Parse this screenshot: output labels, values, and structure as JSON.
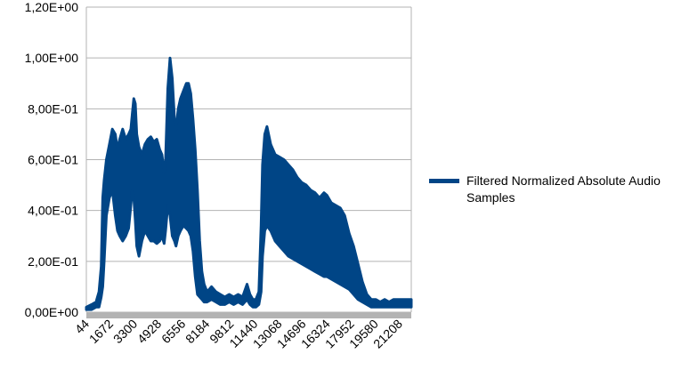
{
  "chart_data": {
    "type": "area",
    "title": "",
    "xlabel": "",
    "ylabel": "",
    "ylim": [
      0,
      1.2
    ],
    "y_ticks": [
      "0,00E+00",
      "2,00E-01",
      "4,00E-01",
      "6,00E-01",
      "8,00E-01",
      "1,00E+00",
      "1,20E+00"
    ],
    "y_tick_values": [
      0,
      0.2,
      0.4,
      0.6,
      0.8,
      1.0,
      1.2
    ],
    "x_range": [
      44,
      22000
    ],
    "x_ticks": [
      "44",
      "1672",
      "3300",
      "4928",
      "6556",
      "8184",
      "9812",
      "11440",
      "13068",
      "14696",
      "16324",
      "17952",
      "19580",
      "21208"
    ],
    "x_tick_values": [
      44,
      1672,
      3300,
      4928,
      6556,
      8184,
      9812,
      11440,
      13068,
      14696,
      16324,
      17952,
      19580,
      21208
    ],
    "grid": true,
    "legend_position": "right",
    "series": [
      {
        "name": "Filtered Normalized Absolute Audio Samples",
        "color": "#004586",
        "upper": [
          [
            44,
            0.02
          ],
          [
            400,
            0.03
          ],
          [
            700,
            0.04
          ],
          [
            900,
            0.08
          ],
          [
            1050,
            0.18
          ],
          [
            1150,
            0.45
          ],
          [
            1250,
            0.52
          ],
          [
            1400,
            0.6
          ],
          [
            1600,
            0.66
          ],
          [
            1800,
            0.72
          ],
          [
            2000,
            0.7
          ],
          [
            2150,
            0.64
          ],
          [
            2300,
            0.68
          ],
          [
            2500,
            0.72
          ],
          [
            2700,
            0.68
          ],
          [
            2900,
            0.7
          ],
          [
            3050,
            0.72
          ],
          [
            3150,
            0.78
          ],
          [
            3250,
            0.84
          ],
          [
            3350,
            0.82
          ],
          [
            3450,
            0.7
          ],
          [
            3600,
            0.65
          ],
          [
            3800,
            0.62
          ],
          [
            4000,
            0.66
          ],
          [
            4200,
            0.68
          ],
          [
            4400,
            0.69
          ],
          [
            4600,
            0.67
          ],
          [
            4800,
            0.68
          ],
          [
            5000,
            0.64
          ],
          [
            5150,
            0.62
          ],
          [
            5300,
            0.55
          ],
          [
            5400,
            0.6
          ],
          [
            5550,
            0.88
          ],
          [
            5700,
            1.0
          ],
          [
            5850,
            0.92
          ],
          [
            6000,
            0.76
          ],
          [
            6100,
            0.72
          ],
          [
            6250,
            0.8
          ],
          [
            6400,
            0.84
          ],
          [
            6600,
            0.87
          ],
          [
            6800,
            0.9
          ],
          [
            6950,
            0.9
          ],
          [
            7100,
            0.86
          ],
          [
            7250,
            0.76
          ],
          [
            7400,
            0.64
          ],
          [
            7550,
            0.48
          ],
          [
            7700,
            0.28
          ],
          [
            7850,
            0.16
          ],
          [
            8000,
            0.11
          ],
          [
            8200,
            0.08
          ],
          [
            8500,
            0.1
          ],
          [
            8800,
            0.08
          ],
          [
            9100,
            0.07
          ],
          [
            9400,
            0.06
          ],
          [
            9700,
            0.07
          ],
          [
            10000,
            0.06
          ],
          [
            10300,
            0.07
          ],
          [
            10600,
            0.06
          ],
          [
            10900,
            0.11
          ],
          [
            11100,
            0.07
          ],
          [
            11300,
            0.05
          ],
          [
            11500,
            0.05
          ],
          [
            11700,
            0.08
          ],
          [
            11850,
            0.34
          ],
          [
            11950,
            0.58
          ],
          [
            12100,
            0.7
          ],
          [
            12250,
            0.73
          ],
          [
            12500,
            0.66
          ],
          [
            12800,
            0.62
          ],
          [
            13100,
            0.61
          ],
          [
            13400,
            0.6
          ],
          [
            13700,
            0.58
          ],
          [
            14000,
            0.56
          ],
          [
            14300,
            0.53
          ],
          [
            14600,
            0.51
          ],
          [
            14900,
            0.5
          ],
          [
            15200,
            0.48
          ],
          [
            15500,
            0.47
          ],
          [
            15800,
            0.45
          ],
          [
            16100,
            0.47
          ],
          [
            16300,
            0.46
          ],
          [
            16600,
            0.43
          ],
          [
            16900,
            0.42
          ],
          [
            17200,
            0.41
          ],
          [
            17500,
            0.38
          ],
          [
            17800,
            0.31
          ],
          [
            18100,
            0.26
          ],
          [
            18400,
            0.19
          ],
          [
            18700,
            0.12
          ],
          [
            19000,
            0.07
          ],
          [
            19300,
            0.05
          ],
          [
            19600,
            0.05
          ],
          [
            19900,
            0.04
          ],
          [
            20200,
            0.05
          ],
          [
            20500,
            0.04
          ],
          [
            20800,
            0.05
          ],
          [
            21100,
            0.05
          ],
          [
            21500,
            0.05
          ],
          [
            22000,
            0.05
          ]
        ],
        "lower": [
          [
            44,
            0.01
          ],
          [
            400,
            0.01
          ],
          [
            700,
            0.02
          ],
          [
            900,
            0.02
          ],
          [
            1050,
            0.06
          ],
          [
            1150,
            0.1
          ],
          [
            1250,
            0.2
          ],
          [
            1400,
            0.38
          ],
          [
            1600,
            0.45
          ],
          [
            1800,
            0.48
          ],
          [
            2000,
            0.38
          ],
          [
            2150,
            0.32
          ],
          [
            2300,
            0.3
          ],
          [
            2500,
            0.28
          ],
          [
            2700,
            0.3
          ],
          [
            2900,
            0.33
          ],
          [
            3050,
            0.42
          ],
          [
            3150,
            0.48
          ],
          [
            3250,
            0.45
          ],
          [
            3350,
            0.36
          ],
          [
            3450,
            0.26
          ],
          [
            3600,
            0.22
          ],
          [
            3800,
            0.28
          ],
          [
            4000,
            0.32
          ],
          [
            4200,
            0.3
          ],
          [
            4400,
            0.28
          ],
          [
            4600,
            0.28
          ],
          [
            4800,
            0.27
          ],
          [
            5000,
            0.28
          ],
          [
            5150,
            0.3
          ],
          [
            5300,
            0.27
          ],
          [
            5400,
            0.32
          ],
          [
            5550,
            0.42
          ],
          [
            5700,
            0.38
          ],
          [
            5850,
            0.3
          ],
          [
            6000,
            0.28
          ],
          [
            6100,
            0.26
          ],
          [
            6250,
            0.3
          ],
          [
            6400,
            0.32
          ],
          [
            6600,
            0.34
          ],
          [
            6800,
            0.33
          ],
          [
            6950,
            0.32
          ],
          [
            7100,
            0.3
          ],
          [
            7250,
            0.24
          ],
          [
            7400,
            0.14
          ],
          [
            7550,
            0.07
          ],
          [
            7700,
            0.06
          ],
          [
            7850,
            0.05
          ],
          [
            8000,
            0.04
          ],
          [
            8200,
            0.04
          ],
          [
            8500,
            0.05
          ],
          [
            8800,
            0.04
          ],
          [
            9100,
            0.03
          ],
          [
            9400,
            0.03
          ],
          [
            9700,
            0.04
          ],
          [
            10000,
            0.03
          ],
          [
            10300,
            0.04
          ],
          [
            10600,
            0.03
          ],
          [
            10900,
            0.05
          ],
          [
            11100,
            0.03
          ],
          [
            11300,
            0.02
          ],
          [
            11500,
            0.02
          ],
          [
            11700,
            0.03
          ],
          [
            11850,
            0.08
          ],
          [
            11950,
            0.22
          ],
          [
            12100,
            0.32
          ],
          [
            12250,
            0.34
          ],
          [
            12500,
            0.32
          ],
          [
            12800,
            0.28
          ],
          [
            13100,
            0.26
          ],
          [
            13400,
            0.24
          ],
          [
            13700,
            0.22
          ],
          [
            14000,
            0.21
          ],
          [
            14300,
            0.2
          ],
          [
            14600,
            0.19
          ],
          [
            14900,
            0.18
          ],
          [
            15200,
            0.17
          ],
          [
            15500,
            0.16
          ],
          [
            15800,
            0.15
          ],
          [
            16100,
            0.14
          ],
          [
            16300,
            0.14
          ],
          [
            16600,
            0.13
          ],
          [
            16900,
            0.12
          ],
          [
            17200,
            0.11
          ],
          [
            17500,
            0.1
          ],
          [
            17800,
            0.09
          ],
          [
            18100,
            0.07
          ],
          [
            18400,
            0.05
          ],
          [
            18700,
            0.04
          ],
          [
            19000,
            0.03
          ],
          [
            19300,
            0.02
          ],
          [
            19600,
            0.02
          ],
          [
            19900,
            0.02
          ],
          [
            20200,
            0.02
          ],
          [
            20500,
            0.02
          ],
          [
            20800,
            0.02
          ],
          [
            21100,
            0.02
          ],
          [
            21500,
            0.02
          ],
          [
            22000,
            0.02
          ]
        ]
      }
    ],
    "colors": {
      "grid": "#b3b3b3",
      "axis_band": "#b3b3b3",
      "series": "#004586"
    }
  },
  "legend": {
    "label": "Filtered Normalized Absolute Audio Samples"
  }
}
